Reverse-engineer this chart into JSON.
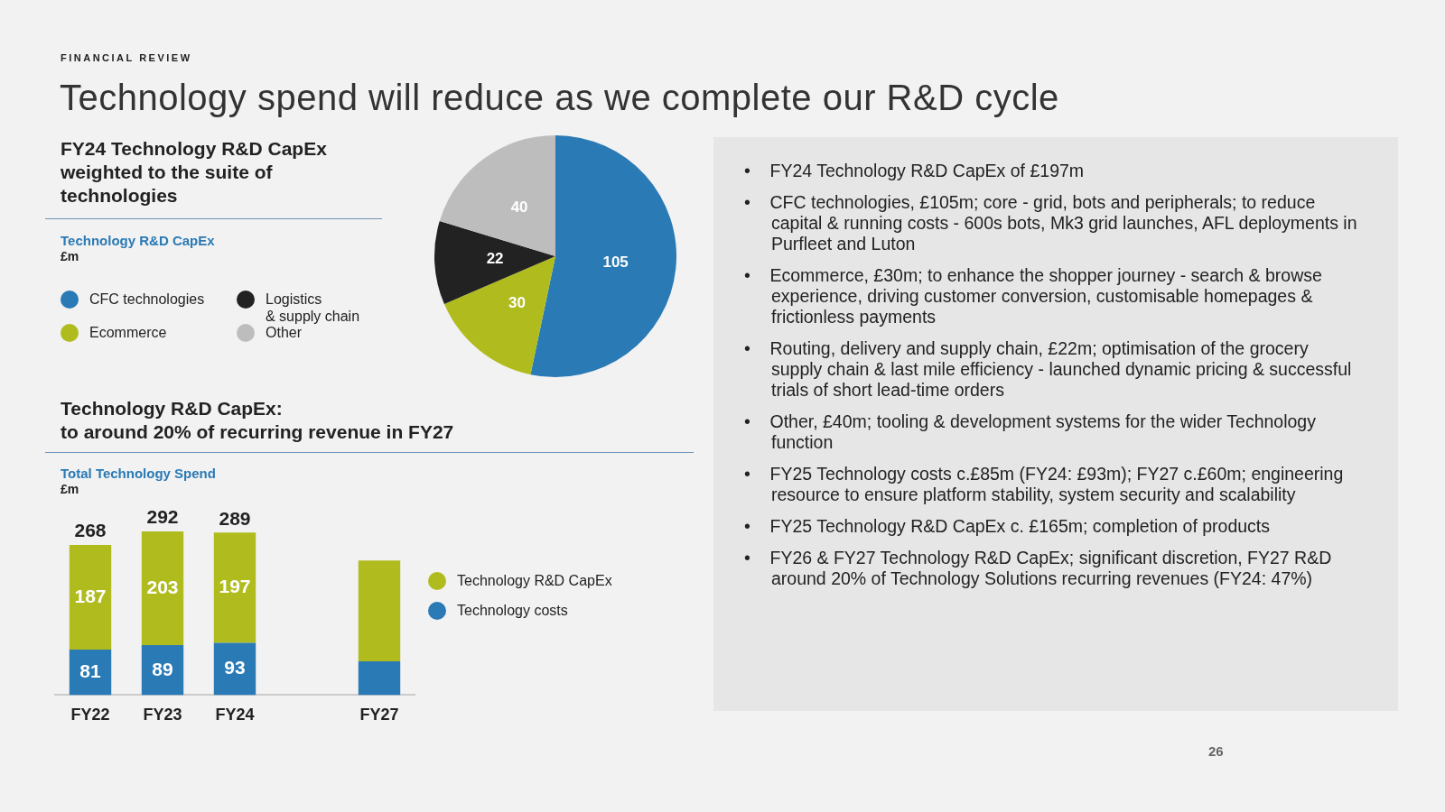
{
  "chart_data": [
    {
      "type": "other",
      "subtitle": "FINANCIAL REVIEW",
      "title": "Technology spend will reduce as we complete our R&D cycle",
      "annotations": [
        "26"
      ]
    },
    {
      "type": "pie",
      "title": "FY24 Technology R&D CapEx weighted to the suite of technologies",
      "subtitle": "Technology R&D CapEx",
      "ylabel": "£m",
      "categories": [
        "CFC technologies",
        "Ecommerce",
        "Logistics\n& supply chain",
        "Other"
      ],
      "values": [
        105,
        30,
        22,
        40
      ],
      "colors": [
        "#2a7ab5",
        "#b0bc1e",
        "#222222",
        "#bdbdbd"
      ],
      "data_labels": true,
      "legend": "left"
    },
    {
      "type": "bar",
      "title": "Technology R&D CapEx:\nto around 20% of recurring revenue in FY27",
      "subtitle": "Total Technology Spend",
      "ylabel": "£m",
      "categories": [
        "FY22",
        "FY23",
        "FY24",
        null,
        "FY27"
      ],
      "stacked": true,
      "legend": "right",
      "series": [
        {
          "name": "Technology costs",
          "color": "#2a7ab5",
          "values": [
            81,
            89,
            93,
            null,
            60
          ],
          "value_labels": [
            "81",
            "89",
            "93",
            null,
            null
          ]
        },
        {
          "name": "Technology R&D CapEx",
          "color": "#b0bc1e",
          "values": [
            187,
            203,
            197,
            null,
            180
          ],
          "value_labels": [
            "187",
            "203",
            "197",
            null,
            null
          ]
        }
      ],
      "totals": [
        "268",
        "292",
        "289",
        null,
        null
      ]
    },
    {
      "type": "other",
      "annotations": [
        "•    FY24 Technology R&D CapEx of £197m",
        "•    CFC technologies, £105m; core - grid, bots and peripherals; to reduce capital & running costs - 600s bots, Mk3 grid launches, AFL deployments in Purfleet and Luton",
        "•    Ecommerce, £30m; to enhance the shopper journey - search & browse experience, driving customer conversion, customisable homepages & frictionless payments",
        "•    Routing, delivery and supply chain, £22m; optimisation of the grocery supply chain & last mile efficiency - launched dynamic pricing & successful trials of short lead-time orders",
        "•    Other, £40m; tooling & development systems for the wider Technology function",
        "•    FY25 Technology costs c.£85m (FY24: £93m); FY27 c.£60m; engineering resource to ensure platform stability, system security and scalability",
        "•    FY25 Technology R&D CapEx c. £165m; completion of products",
        "•    FY26 & FY27 Technology R&D CapEx; significant discretion, FY27 R&D around 20% of Technology Solutions recurring revenues (FY24: 47%)"
      ]
    }
  ]
}
